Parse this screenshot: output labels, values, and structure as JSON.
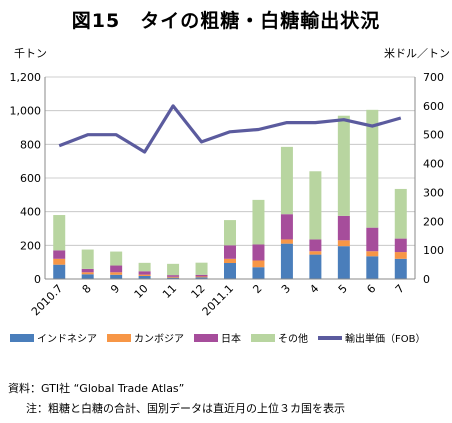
{
  "title": "図15　タイの粗糖・白糖輸出状況",
  "left_unit": "千トン",
  "right_unit": "米ドル／トン",
  "source_note": "資料：GTI社 “Global Trade Atlas”",
  "footnote": "注：粗糖と白糖の合計、国別データは直近月の上位３カ国を表示",
  "colors": {
    "indonesia": "#4a7ebb",
    "cambodia": "#f79646",
    "japan": "#a64d9b",
    "other": "#b8d5a0",
    "price_line": "#5b5b9e"
  },
  "chart_data": {
    "type": "bar",
    "stacked": true,
    "categories": [
      "2010.7",
      "8",
      "9",
      "10",
      "11",
      "12",
      "2011.1",
      "2",
      "3",
      "4",
      "5",
      "6",
      "7"
    ],
    "ylim_left": [
      0,
      1200
    ],
    "yticks_left": [
      "0",
      "200",
      "400",
      "600",
      "800",
      "1,000",
      "1,200"
    ],
    "ylim_right": [
      0,
      700
    ],
    "yticks_right": [
      "0",
      "100",
      "200",
      "300",
      "400",
      "500",
      "600",
      "700"
    ],
    "grid": true,
    "legend_position": "bottom",
    "series": [
      {
        "name": "インドネシア",
        "axis": "left",
        "values": [
          85,
          28,
          25,
          18,
          8,
          10,
          95,
          70,
          210,
          145,
          195,
          135,
          120
        ]
      },
      {
        "name": "カンボジア",
        "axis": "left",
        "values": [
          35,
          12,
          15,
          8,
          5,
          5,
          25,
          40,
          25,
          20,
          35,
          30,
          40
        ]
      },
      {
        "name": "日本",
        "axis": "left",
        "values": [
          50,
          20,
          40,
          20,
          10,
          10,
          80,
          95,
          150,
          70,
          145,
          140,
          80
        ]
      },
      {
        "name": "その他",
        "axis": "left",
        "values": [
          210,
          115,
          83,
          50,
          67,
          72,
          150,
          265,
          400,
          405,
          595,
          700,
          295
        ]
      },
      {
        "name": "輸出単価（FOB）",
        "axis": "right",
        "type": "line",
        "values": [
          462,
          500,
          500,
          440,
          600,
          475,
          510,
          518,
          542,
          542,
          552,
          530,
          558
        ]
      }
    ]
  }
}
